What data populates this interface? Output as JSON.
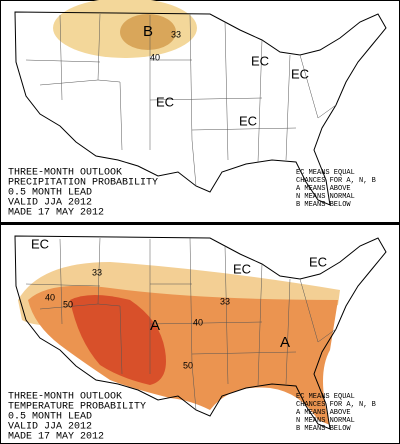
{
  "panels": [
    {
      "labels": [
        "B",
        "33",
        "40",
        "EC",
        "EC",
        "EC",
        "EC"
      ],
      "caption": [
        "THREE-MONTH OUTLOOK",
        "PRECIPITATION PROBABILITY",
        "0.5 MONTH LEAD",
        "VALID JJA 2012",
        "MADE 17 MAY 2012"
      ],
      "legend": [
        "EC MEANS EQUAL",
        "CHANCES FOR A, N, B",
        "A MEANS ABOVE",
        "N MEANS NORMAL",
        "B MEANS BELOW"
      ]
    },
    {
      "labels": [
        "EC",
        "EC",
        "EC",
        "33",
        "40",
        "50",
        "33",
        "40",
        "A",
        "A",
        "50"
      ],
      "caption": [
        "THREE-MONTH OUTLOOK",
        "TEMPERATURE PROBABILITY",
        "0.5 MONTH LEAD",
        "VALID JJA 2012",
        "MADE 17 MAY 2012"
      ],
      "legend": [
        "EC MEANS EQUAL",
        "CHANCES FOR A, N, B",
        "A MEANS ABOVE",
        "N MEANS NORMAL",
        "B MEANS BELOW"
      ]
    }
  ]
}
